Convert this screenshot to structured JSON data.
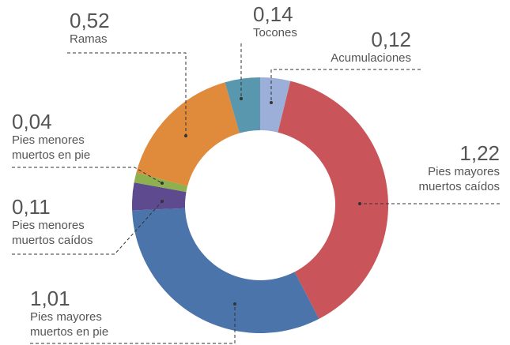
{
  "chart_data": {
    "type": "donut",
    "categories": [
      "Acumulaciones",
      "Pies mayores muertos caídos",
      "Pies mayores muertos en pie",
      "Pies menores muertos caídos",
      "Pies menores muertos en pie",
      "Ramas",
      "Tocones"
    ],
    "values": [
      0.12,
      1.22,
      1.01,
      0.11,
      0.04,
      0.52,
      0.14
    ],
    "value_labels": [
      "0,12",
      "1,22",
      "1,01",
      "0,11",
      "0,04",
      "0,52",
      "0,14"
    ],
    "colors": [
      "#9bafd8",
      "#c9545a",
      "#4a74aa",
      "#5e4a8f",
      "#8fb04e",
      "#e08a3c",
      "#5897ad"
    ]
  }
}
